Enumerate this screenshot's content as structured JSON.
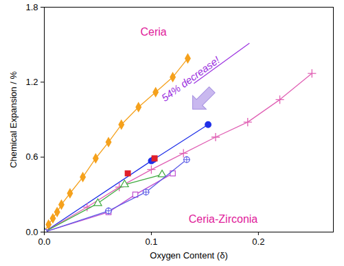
{
  "chart_data": {
    "type": "line",
    "xlabel": "Oxygen Content (δ)",
    "ylabel": "Chemical Expansion / %",
    "xlim": [
      0,
      0.27
    ],
    "ylim": [
      0,
      1.8
    ],
    "xticks": [
      {
        "value": 0,
        "label": "0.0"
      },
      {
        "value": 0.1,
        "label": "0.1"
      },
      {
        "value": 0.2,
        "label": "0.2"
      }
    ],
    "yticks": [
      {
        "value": 0,
        "label": "0.0"
      },
      0.6,
      1.2,
      1.8
    ],
    "grid": false,
    "series": [
      {
        "color": "#f5a11c",
        "marker": "diamond",
        "x": [
          0,
          0.004,
          0.008,
          0.012,
          0.016,
          0.024,
          0.036,
          0.048,
          0.06,
          0.072,
          0.088,
          0.104,
          0.12,
          0.134
        ],
        "values": [
          0,
          0.06,
          0.11,
          0.16,
          0.22,
          0.31,
          0.44,
          0.59,
          0.72,
          0.86,
          1.0,
          1.12,
          1.24,
          1.39
        ]
      },
      {
        "color": "#1f2fe8",
        "marker": "circle",
        "x": [
          0,
          0.1,
          0.102,
          0.153
        ],
        "values": [
          0,
          0.57,
          0.58,
          0.86
        ]
      },
      {
        "color": "#e060b4",
        "marker": "plus",
        "x": [
          0,
          0.04,
          0.07,
          0.1,
          0.13,
          0.16,
          0.19,
          0.22,
          0.25
        ],
        "values": [
          0,
          0.2,
          0.36,
          0.5,
          0.63,
          0.76,
          0.88,
          1.06,
          1.27
        ]
      },
      {
        "color": "#e0202a",
        "marker": "square",
        "type": "scatter",
        "x": [
          0.078,
          0.103
        ],
        "values": [
          0.47,
          0.59
        ]
      },
      {
        "color": "#3faa3f",
        "marker": "triangle-open",
        "x": [
          0,
          0.05,
          0.075,
          0.11
        ],
        "values": [
          0,
          0.23,
          0.38,
          0.46
        ]
      },
      {
        "color": "#c050d0",
        "marker": "square-open",
        "x": [
          0,
          0.06,
          0.085,
          0.12
        ],
        "values": [
          0,
          0.16,
          0.3,
          0.47
        ]
      },
      {
        "color": "#5a5ae6",
        "marker": "circle-plus-open",
        "x": [
          0,
          0.06,
          0.095,
          0.133
        ],
        "values": [
          0,
          0.17,
          0.32,
          0.58
        ]
      }
    ],
    "annotations": [
      {
        "text": "Ceria",
        "color": "#e0209a"
      },
      {
        "text": "Ceria-Zirconia",
        "color": "#e0209a"
      },
      {
        "text": "54% decrease!",
        "color": "#9b30e0"
      }
    ]
  }
}
